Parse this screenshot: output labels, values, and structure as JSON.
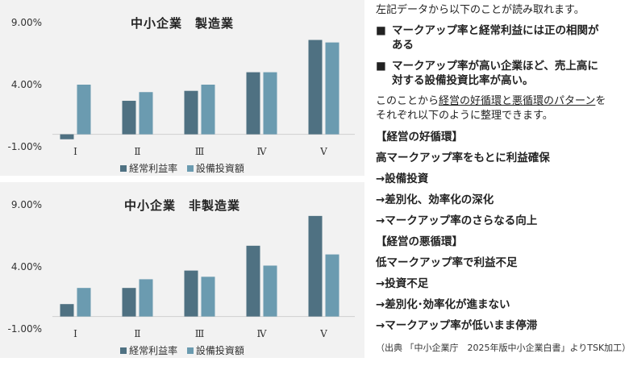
{
  "colors": {
    "series1": "#4f7182",
    "series2": "#6b9bb0",
    "panel_bg": "#f2f2f2"
  },
  "chart_data": [
    {
      "type": "bar",
      "title": "中小企業　製造業",
      "categories": [
        "Ⅰ",
        "Ⅱ",
        "Ⅲ",
        "Ⅳ",
        "Ⅴ"
      ],
      "series": [
        {
          "name": "経常利益率",
          "values": [
            -0.4,
            2.7,
            3.5,
            5.0,
            7.6
          ]
        },
        {
          "name": "設備投資額",
          "values": [
            4.0,
            3.4,
            4.0,
            5.0,
            7.4
          ]
        }
      ],
      "yticks": [
        "9.00%",
        "4.00%",
        "-1.00%"
      ],
      "ylim": [
        -1,
        9
      ],
      "legend": "bottom"
    },
    {
      "type": "bar",
      "title": "中小企業　非製造業",
      "categories": [
        "Ⅰ",
        "Ⅱ",
        "Ⅲ",
        "Ⅳ",
        "Ⅴ"
      ],
      "series": [
        {
          "name": "経常利益率",
          "values": [
            1.0,
            2.3,
            3.7,
            5.7,
            8.1
          ]
        },
        {
          "name": "設備投資額",
          "values": [
            2.3,
            3.0,
            3.2,
            4.1,
            5.0
          ]
        }
      ],
      "yticks": [
        "9.00%",
        "4.00%",
        "-1.00%"
      ],
      "ylim": [
        -1,
        9
      ],
      "legend": "bottom"
    }
  ],
  "text": {
    "intro": "左記データから以下のことが読み取れます。",
    "bullet_mark": "■",
    "bullet1": "マークアップ率と経常利益には正の相関があある",
    "bullet1_a": "マークアップ率と経常利益には正の相関が",
    "bullet1_b": "ある",
    "bullet2_a": "マークアップ率が高い企業ほど、売上高に",
    "bullet2_b": "対する設備投資比率が高い。",
    "para_pre": "このことから",
    "para_ul": "経営の好循環と悪循環のパターン",
    "para_post": "を",
    "para_line2": "それぞれ以下のように整理できます。",
    "lines": [
      "【経営の好循環】",
      "高マークアップ率をもとに利益確保",
      "→設備投資",
      "→差別化、効率化の深化",
      "→マークアップ率のさらなる向上",
      "【経営の悪循環】",
      "低マークアップ率で利益不足",
      "→投資不足",
      "→差別化･効率化が進まない",
      "→マークアップ率が低いまま停滞"
    ],
    "source": "（出典 「中小企業庁　2025年版中小企業白書」よりTSK加工）"
  }
}
